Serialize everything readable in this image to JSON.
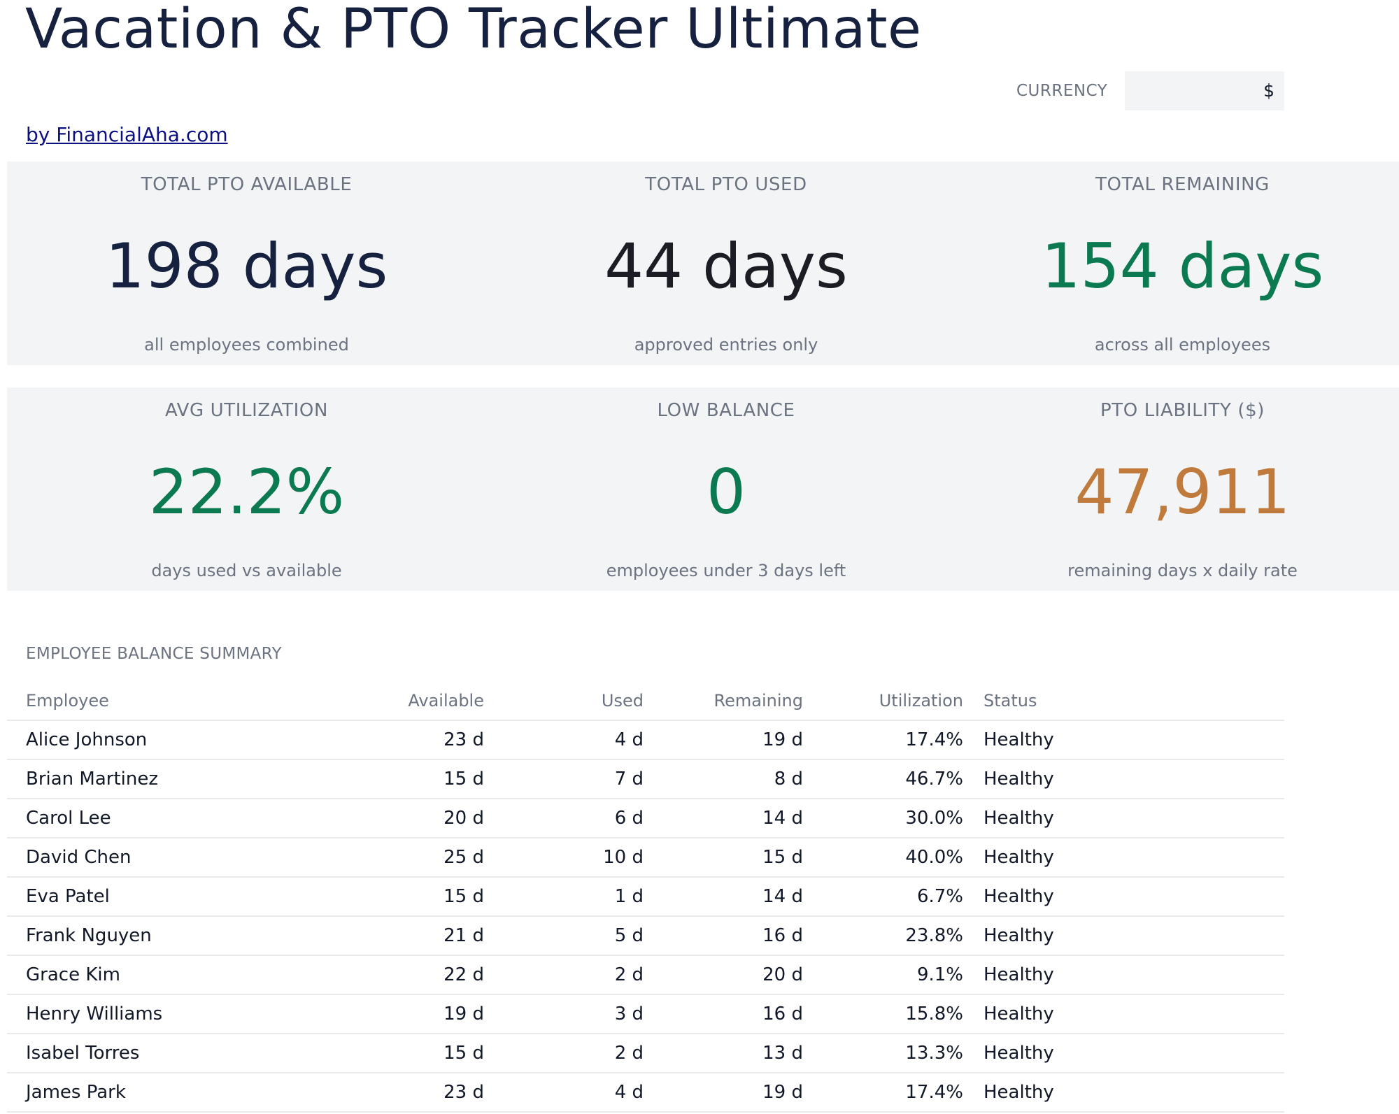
{
  "app": {
    "title": "Vacation & PTO Tracker Ultimate",
    "byline": "by FinancialAha.com"
  },
  "currency": {
    "label": "CURRENCY",
    "value": "$"
  },
  "kpis": [
    {
      "label": "TOTAL PTO AVAILABLE",
      "value": "198 days",
      "sub": "all employees combined",
      "color": "#15213f"
    },
    {
      "label": "TOTAL PTO USED",
      "value": "44 days",
      "sub": "approved entries only",
      "color": "#1c1c24"
    },
    {
      "label": "TOTAL REMAINING",
      "value": "154 days",
      "sub": "across all employees",
      "color": "#0b7a50"
    },
    {
      "label": "AVG UTILIZATION",
      "value": "22.2%",
      "sub": "days used vs available",
      "color": "#0b7a50"
    },
    {
      "label": "LOW BALANCE",
      "value": "0",
      "sub": "employees under 3 days left",
      "color": "#0b7a50"
    },
    {
      "label": "PTO LIABILITY ($)",
      "value": "47,911",
      "sub": "remaining days x daily rate",
      "color": "#c07b3c"
    }
  ],
  "summary": {
    "title": "EMPLOYEE BALANCE SUMMARY",
    "columns": [
      "Employee",
      "Available",
      "Used",
      "Remaining",
      "Utilization",
      "Status"
    ],
    "rows": [
      [
        "Alice Johnson",
        "23 d",
        "4 d",
        "19 d",
        "17.4%",
        "Healthy"
      ],
      [
        "Brian Martinez",
        "15 d",
        "7 d",
        "8 d",
        "46.7%",
        "Healthy"
      ],
      [
        "Carol Lee",
        "20 d",
        "6 d",
        "14 d",
        "30.0%",
        "Healthy"
      ],
      [
        "David Chen",
        "25 d",
        "10 d",
        "15 d",
        "40.0%",
        "Healthy"
      ],
      [
        "Eva Patel",
        "15 d",
        "1 d",
        "14 d",
        "6.7%",
        "Healthy"
      ],
      [
        "Frank Nguyen",
        "21 d",
        "5 d",
        "16 d",
        "23.8%",
        "Healthy"
      ],
      [
        "Grace Kim",
        "22 d",
        "2 d",
        "20 d",
        "9.1%",
        "Healthy"
      ],
      [
        "Henry Williams",
        "19 d",
        "3 d",
        "16 d",
        "15.8%",
        "Healthy"
      ],
      [
        "Isabel Torres",
        "15 d",
        "2 d",
        "13 d",
        "13.3%",
        "Healthy"
      ],
      [
        "James Park",
        "23 d",
        "4 d",
        "19 d",
        "17.4%",
        "Healthy"
      ]
    ]
  }
}
